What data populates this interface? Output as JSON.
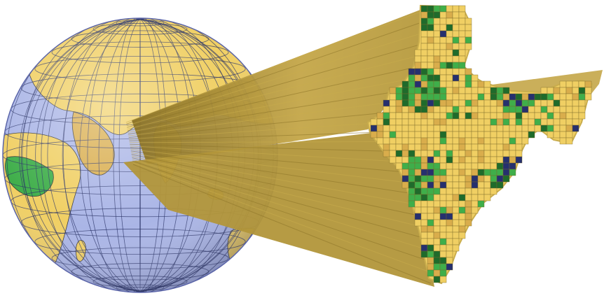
{
  "figure": {
    "colors": {
      "background": "#ffffff",
      "ocean": "#aab5e6",
      "ocean_edge": "#6f7cc4",
      "land_dry": "#f0cf63",
      "land_mid": "#d9ad4c",
      "land_green": "#3fae4a",
      "land_dark_green": "#1f6b2b",
      "land_blue": "#26306e",
      "grid_line": "#283266",
      "beam_light": "#c9ad4d",
      "beam_mid": "#b2963a",
      "beam_dark": "#8c7428",
      "cell_outline": "#7a6a2a"
    },
    "globe": {
      "graticule": true,
      "feature": "globe-with-graticule",
      "region_highlighted": "South Asia"
    },
    "zoom": {
      "feature": "projection-beam",
      "target": "india-grid-map"
    },
    "grid_map": {
      "feature": "gridded-cell-map",
      "cell_classes": [
        "dry",
        "mid",
        "green",
        "dark-green",
        "blue"
      ]
    }
  }
}
